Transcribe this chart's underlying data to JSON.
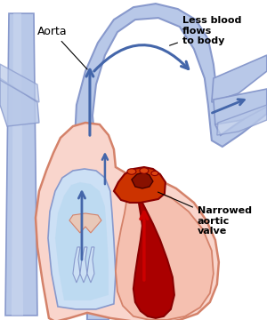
{
  "bg_color": "#ffffff",
  "heart_fill": "#f9d5cc",
  "heart_stroke": "#d4826a",
  "aorta_fill": "#b8c8e8",
  "aorta_stroke": "#8899cc",
  "arrow_blue": "#4466aa",
  "arrow_red": "#aa0000",
  "red_dark": "#880000",
  "text_color": "#000000",
  "label_aorta": "Aorta",
  "label_less_blood": "Less blood\nflows\nto body",
  "label_valve": "Narrowed\naortic\nvalve",
  "figsize": [
    3.0,
    3.6
  ],
  "dpi": 100
}
